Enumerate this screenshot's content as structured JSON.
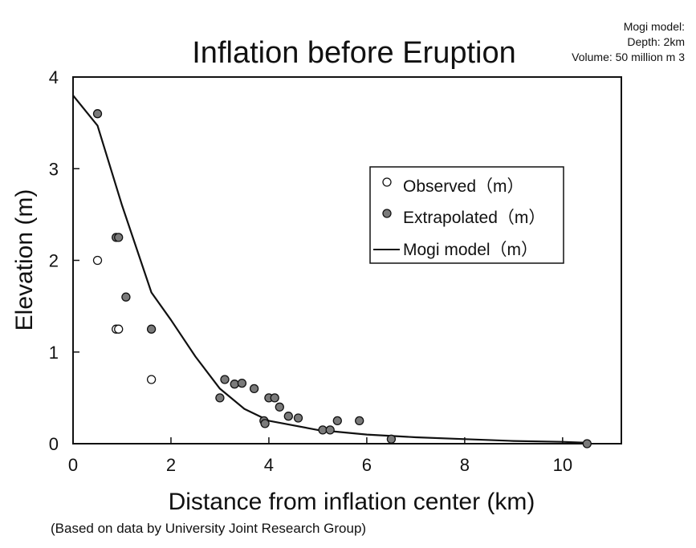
{
  "chart_data": {
    "type": "scatter",
    "title": "Inflation before Eruption",
    "xlabel": "Distance from inflation center (km)",
    "ylabel": "Elevation (m)",
    "xlim": [
      0,
      11.2
    ],
    "ylim": [
      0,
      4
    ],
    "xticks": [
      0,
      2,
      4,
      6,
      8,
      10
    ],
    "yticks": [
      0,
      1,
      2,
      3,
      4
    ],
    "grid": false,
    "legend_position": "top-right",
    "series": [
      {
        "name": "Observed（m）",
        "kind": "open-circle",
        "points": [
          {
            "x": 0.5,
            "y": 2.0
          },
          {
            "x": 0.88,
            "y": 1.25
          },
          {
            "x": 0.93,
            "y": 1.25
          },
          {
            "x": 1.6,
            "y": 0.7
          }
        ]
      },
      {
        "name": "Extrapolated（m）",
        "kind": "filled-circle",
        "points": [
          {
            "x": 0.5,
            "y": 3.6
          },
          {
            "x": 0.88,
            "y": 2.25
          },
          {
            "x": 0.93,
            "y": 2.25
          },
          {
            "x": 1.08,
            "y": 1.6
          },
          {
            "x": 1.6,
            "y": 1.25
          },
          {
            "x": 3.0,
            "y": 0.5
          },
          {
            "x": 3.1,
            "y": 0.7
          },
          {
            "x": 3.3,
            "y": 0.65
          },
          {
            "x": 3.45,
            "y": 0.66
          },
          {
            "x": 3.7,
            "y": 0.6
          },
          {
            "x": 3.9,
            "y": 0.25
          },
          {
            "x": 3.92,
            "y": 0.22
          },
          {
            "x": 4.0,
            "y": 0.5
          },
          {
            "x": 4.12,
            "y": 0.5
          },
          {
            "x": 4.22,
            "y": 0.4
          },
          {
            "x": 4.4,
            "y": 0.3
          },
          {
            "x": 4.6,
            "y": 0.28
          },
          {
            "x": 5.1,
            "y": 0.15
          },
          {
            "x": 5.25,
            "y": 0.15
          },
          {
            "x": 5.4,
            "y": 0.25
          },
          {
            "x": 5.85,
            "y": 0.25
          },
          {
            "x": 6.5,
            "y": 0.05
          },
          {
            "x": 10.5,
            "y": 0.0
          }
        ]
      },
      {
        "name": "Mogi model（m）",
        "kind": "line",
        "points": [
          {
            "x": 0.0,
            "y": 3.8
          },
          {
            "x": 0.5,
            "y": 3.47
          },
          {
            "x": 1.0,
            "y": 2.6
          },
          {
            "x": 1.6,
            "y": 1.65
          },
          {
            "x": 2.0,
            "y": 1.35
          },
          {
            "x": 2.5,
            "y": 0.95
          },
          {
            "x": 3.0,
            "y": 0.6
          },
          {
            "x": 3.5,
            "y": 0.38
          },
          {
            "x": 4.0,
            "y": 0.25
          },
          {
            "x": 5.0,
            "y": 0.15
          },
          {
            "x": 6.0,
            "y": 0.1
          },
          {
            "x": 7.0,
            "y": 0.07
          },
          {
            "x": 8.0,
            "y": 0.05
          },
          {
            "x": 9.0,
            "y": 0.03
          },
          {
            "x": 10.0,
            "y": 0.02
          },
          {
            "x": 10.5,
            "y": 0.01
          }
        ]
      }
    ],
    "annotations": {
      "model_note": [
        "Mogi model:",
        "Depth: 2km",
        "Volume: 50 million m 3"
      ],
      "source": "(Based on data by University Joint Research Group)"
    }
  }
}
